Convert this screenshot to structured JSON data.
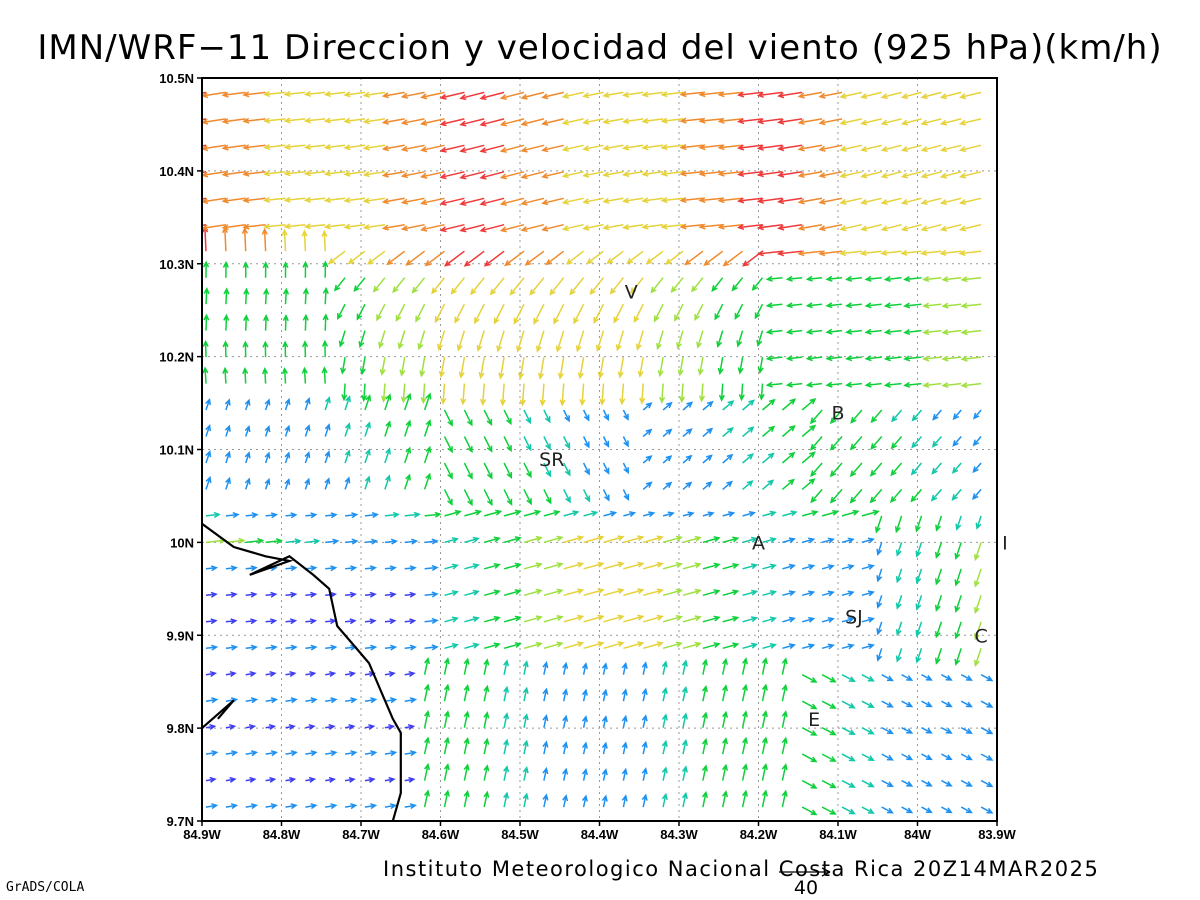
{
  "title": "IMN/WRF−11 Direccion y velocidad del viento (925 hPa)(km/h)",
  "credit": "Instituto Meteorologico Nacional Costa Rica  20Z14MAR2025",
  "software": "GrADS/COLA",
  "reference_vector": {
    "label": "40",
    "speed_kmh": 40
  },
  "map": {
    "lon_range": [
      -84.9,
      -83.9
    ],
    "lat_range": [
      9.7,
      10.5
    ],
    "grid": true,
    "x_tick_labels": [
      "84.9W",
      "84.8W",
      "84.7W",
      "84.6W",
      "84.5W",
      "84.4W",
      "84.3W",
      "84.2W",
      "84.1W",
      "84W",
      "83.9W"
    ],
    "y_tick_labels": [
      "10.5N",
      "10.4N",
      "10.3N",
      "10.2N",
      "10.1N",
      "10N",
      "9.9N",
      "9.8N",
      "9.7N"
    ],
    "city_labels": [
      {
        "label": "V",
        "lon": -84.36,
        "lat": 10.27
      },
      {
        "label": "B",
        "lon": -84.1,
        "lat": 10.14
      },
      {
        "label": "SR",
        "lon": -84.46,
        "lat": 10.09
      },
      {
        "label": "A",
        "lon": -84.2,
        "lat": 10.0
      },
      {
        "label": "SJ",
        "lon": -84.08,
        "lat": 9.92
      },
      {
        "label": "C",
        "lon": -83.92,
        "lat": 9.9
      },
      {
        "label": "E",
        "lon": -84.13,
        "lat": 9.81
      },
      {
        "label": "I",
        "lon": -83.89,
        "lat": 10.0
      }
    ],
    "coastline": [
      [
        -84.9,
        10.02
      ],
      [
        -84.86,
        9.995
      ],
      [
        -84.82,
        9.985
      ],
      [
        -84.79,
        9.98
      ],
      [
        -84.84,
        9.965
      ],
      [
        -84.79,
        9.985
      ],
      [
        -84.76,
        9.965
      ],
      [
        -84.74,
        9.95
      ],
      [
        -84.73,
        9.91
      ],
      [
        -84.71,
        9.89
      ],
      [
        -84.69,
        9.87
      ],
      [
        -84.675,
        9.84
      ],
      [
        -84.66,
        9.81
      ],
      [
        -84.65,
        9.795
      ],
      [
        -84.65,
        9.78
      ],
      [
        -84.65,
        9.76
      ],
      [
        -84.65,
        9.73
      ],
      [
        -84.66,
        9.7
      ]
    ],
    "coastline_spur": [
      [
        -84.9,
        9.8
      ],
      [
        -84.86,
        9.83
      ],
      [
        -84.88,
        9.81
      ]
    ]
  },
  "wind_legend_colors": [
    "#8b00d6",
    "#3f3ff0",
    "#1e90f0",
    "#12c8a8",
    "#0ed03a",
    "#9fe040",
    "#e6d23a",
    "#f08a2c",
    "#f03a3a",
    "#e0107a"
  ]
}
